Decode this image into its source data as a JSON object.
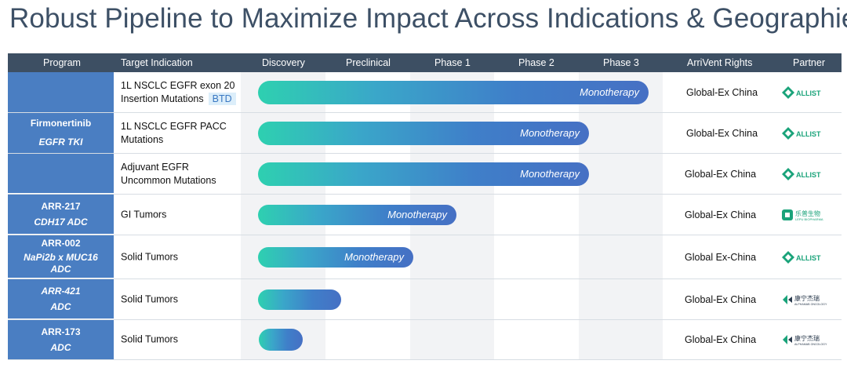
{
  "title": "Robust Pipeline to Maximize Impact Across Indications & Geographies",
  "header": {
    "program": "Program",
    "target": "Target Indication",
    "discovery": "Discovery",
    "preclinical": "Preclinical",
    "phase1": "Phase 1",
    "phase2": "Phase 2",
    "phase3": "Phase 3",
    "rights": "ArriVent Rights",
    "partner": "Partner"
  },
  "programs": [
    {
      "name": "Firmonertinib",
      "type": "EGFR TKI"
    },
    {
      "name": "ARR-217",
      "type": "CDH17 ADC"
    },
    {
      "name": "ARR-002",
      "type": "NaPi2b x MUC16 ADC"
    },
    {
      "name": "ARR-421",
      "type": "ADC"
    },
    {
      "name": "ARR-173",
      "type": "ADC"
    }
  ],
  "rows": [
    {
      "indication_line1": "1L NSCLC EGFR exon 20",
      "indication_line2": "Insertion Mutations",
      "badge": "BTD",
      "bar_label": "Monotherapy",
      "progress_phase_fraction": 0.96,
      "rights": "Global-Ex China",
      "partner": "Allist"
    },
    {
      "indication_line1": "1L NSCLC EGFR PACC",
      "indication_line2": "Mutations",
      "bar_label": "Monotherapy",
      "progress_phase_fraction": 0.82,
      "rights": "Global-Ex China",
      "partner": "Allist"
    },
    {
      "indication_line1": "Adjuvant EGFR",
      "indication_line2": "Uncommon Mutations",
      "bar_label": "Monotherapy",
      "progress_phase_fraction": 0.82,
      "rights": "Global-Ex China",
      "partner": "Allist"
    },
    {
      "indication_line1": "GI Tumors",
      "bar_label": "Monotherapy",
      "progress_phase_fraction": 0.5,
      "rights": "Global-Ex China",
      "partner": "Lepu Biopharma"
    },
    {
      "indication_line1": "Solid Tumors",
      "bar_label": "Monotherapy",
      "progress_phase_fraction": 0.39,
      "rights": "Global Ex-China",
      "partner": "Allist"
    },
    {
      "indication_line1": "Solid Tumors",
      "progress_phase_fraction": 0.2,
      "rights": "Global-Ex China",
      "partner": "Alphamab"
    },
    {
      "indication_line1": "Solid Tumors",
      "progress_phase_fraction": 0.11,
      "rights": "Global-Ex China",
      "partner": "Alphamab"
    }
  ],
  "partners": {
    "allist_text": "ALLIST",
    "lepu_text": "乐普生物",
    "lepu_sub": "LEPU BIOPHARMA",
    "alphamab_text": "康宁杰瑞",
    "alphamab_sub": "ALPHAMAB ONCOLOGY"
  },
  "colors": {
    "header_bg": "#3d4f63",
    "program_bg": "#4a7ec2",
    "bar_start": "#2ed0b0",
    "bar_end": "#4670c4",
    "phase_shade": "#f2f3f5"
  }
}
